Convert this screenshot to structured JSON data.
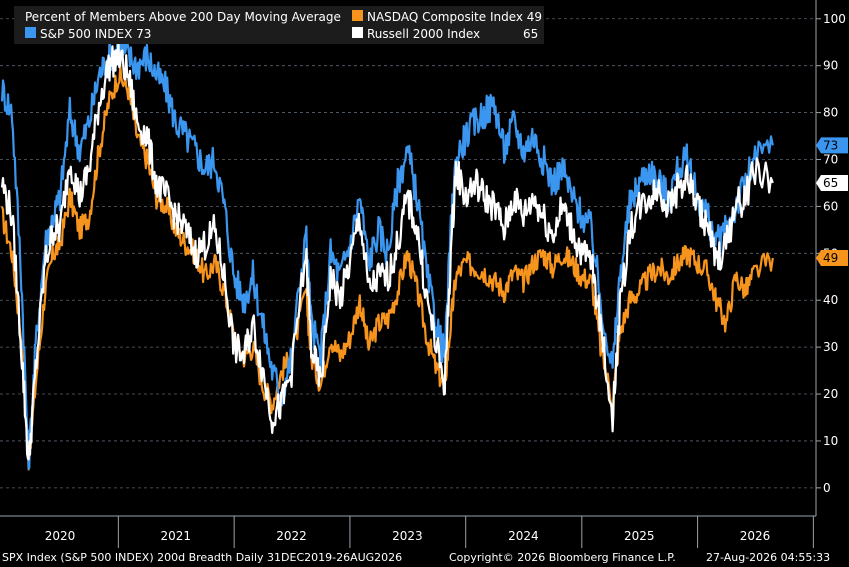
{
  "chart_data": {
    "type": "line",
    "title": "Percent of Members Above 200 Day Moving Average",
    "x_labels": [
      "2020",
      "2021",
      "2022",
      "2023",
      "2024",
      "2025",
      "2026"
    ],
    "ylim": [
      -6,
      104
    ],
    "y_ticks": [
      0,
      10,
      20,
      30,
      40,
      50,
      60,
      70,
      80,
      90,
      100
    ],
    "grid": true,
    "legend_position": "top-left",
    "series": [
      {
        "name": "NASDAQ Composite Index",
        "legend_label": "NASDAQ Composite Index 49",
        "color": "#f7941d",
        "last_value": "49",
        "x": [
          "2019-12-31",
          "2020-02-01",
          "2020-03-01",
          "2020-03-24",
          "2020-04-15",
          "2020-05-15",
          "2020-06-10",
          "2020-07-01",
          "2020-08-01",
          "2020-09-01",
          "2020-10-01",
          "2020-11-01",
          "2020-12-01",
          "2021-01-01",
          "2021-02-01",
          "2021-03-01",
          "2021-04-01",
          "2021-05-01",
          "2021-06-01",
          "2021-07-01",
          "2021-08-01",
          "2021-09-01",
          "2021-10-01",
          "2021-11-01",
          "2021-12-01",
          "2022-01-01",
          "2022-02-01",
          "2022-03-01",
          "2022-04-01",
          "2022-05-01",
          "2022-06-01",
          "2022-07-01",
          "2022-08-15",
          "2022-09-01",
          "2022-10-01",
          "2022-11-01",
          "2022-12-01",
          "2023-01-01",
          "2023-02-01",
          "2023-03-01",
          "2023-04-01",
          "2023-05-01",
          "2023-06-01",
          "2023-07-01",
          "2023-08-01",
          "2023-09-01",
          "2023-10-01",
          "2023-10-27",
          "2023-11-15",
          "2023-12-01",
          "2024-01-01",
          "2024-02-01",
          "2024-03-01",
          "2024-04-01",
          "2024-05-01",
          "2024-06-01",
          "2024-07-01",
          "2024-08-01",
          "2024-09-01",
          "2024-10-01",
          "2024-11-01",
          "2024-12-01",
          "2025-01-01",
          "2025-02-01",
          "2025-03-01",
          "2025-04-08",
          "2025-05-01",
          "2025-06-01",
          "2025-07-01",
          "2025-08-01",
          "2025-09-01",
          "2025-10-01",
          "2025-11-01",
          "2025-12-01",
          "2026-01-01",
          "2026-02-01",
          "2026-03-01",
          "2026-04-01",
          "2026-05-01",
          "2026-06-01",
          "2026-07-01",
          "2026-08-26"
        ],
        "values": [
          58,
          50,
          32,
          6,
          22,
          42,
          50,
          52,
          62,
          55,
          58,
          72,
          82,
          88,
          85,
          75,
          70,
          62,
          60,
          55,
          52,
          50,
          45,
          48,
          42,
          32,
          28,
          30,
          22,
          18,
          25,
          28,
          42,
          28,
          22,
          32,
          28,
          32,
          40,
          30,
          35,
          36,
          42,
          50,
          42,
          32,
          25,
          22,
          35,
          45,
          48,
          47,
          46,
          44,
          42,
          46,
          44,
          48,
          50,
          47,
          50,
          48,
          45,
          44,
          30,
          18,
          33,
          40,
          42,
          45,
          47,
          45,
          48,
          50,
          48,
          46,
          40,
          35,
          45,
          42,
          46,
          49
        ]
      },
      {
        "name": "S&P 500 INDEX",
        "legend_label": "S&P 500 INDEX 73",
        "color": "#3b96f0",
        "last_value": "73",
        "x": [
          "2019-12-31",
          "2020-02-01",
          "2020-03-01",
          "2020-03-24",
          "2020-04-15",
          "2020-05-15",
          "2020-06-10",
          "2020-07-01",
          "2020-08-01",
          "2020-09-01",
          "2020-10-01",
          "2020-11-01",
          "2020-12-01",
          "2021-01-01",
          "2021-02-01",
          "2021-03-01",
          "2021-04-01",
          "2021-05-01",
          "2021-06-01",
          "2021-07-01",
          "2021-08-01",
          "2021-09-01",
          "2021-10-01",
          "2021-11-01",
          "2021-12-01",
          "2022-01-01",
          "2022-02-01",
          "2022-03-01",
          "2022-04-01",
          "2022-05-01",
          "2022-06-01",
          "2022-07-01",
          "2022-08-15",
          "2022-09-01",
          "2022-10-01",
          "2022-11-01",
          "2022-12-01",
          "2023-01-01",
          "2023-02-01",
          "2023-03-01",
          "2023-04-01",
          "2023-05-01",
          "2023-06-01",
          "2023-07-01",
          "2023-08-01",
          "2023-09-01",
          "2023-10-01",
          "2023-10-27",
          "2023-11-15",
          "2023-12-01",
          "2024-01-01",
          "2024-02-01",
          "2024-03-01",
          "2024-04-01",
          "2024-05-01",
          "2024-06-01",
          "2024-07-01",
          "2024-08-01",
          "2024-09-01",
          "2024-10-01",
          "2024-11-01",
          "2024-12-01",
          "2025-01-01",
          "2025-02-01",
          "2025-03-01",
          "2025-04-08",
          "2025-05-01",
          "2025-06-01",
          "2025-07-01",
          "2025-08-01",
          "2025-09-01",
          "2025-10-01",
          "2025-11-01",
          "2025-12-01",
          "2026-01-01",
          "2026-02-01",
          "2026-03-01",
          "2026-04-01",
          "2026-05-01",
          "2026-06-01",
          "2026-07-01",
          "2026-08-26"
        ],
        "values": [
          85,
          80,
          45,
          5,
          30,
          52,
          58,
          62,
          80,
          72,
          78,
          88,
          92,
          94,
          92,
          90,
          92,
          88,
          85,
          78,
          75,
          72,
          68,
          70,
          60,
          45,
          40,
          45,
          35,
          25,
          20,
          28,
          55,
          35,
          28,
          50,
          45,
          52,
          62,
          48,
          55,
          50,
          65,
          72,
          62,
          45,
          35,
          28,
          55,
          70,
          75,
          78,
          80,
          82,
          72,
          78,
          72,
          75,
          70,
          65,
          68,
          62,
          58,
          55,
          40,
          25,
          45,
          60,
          65,
          68,
          65,
          62,
          68,
          70,
          62,
          58,
          52,
          55,
          60,
          65,
          70,
          73
        ]
      },
      {
        "name": "Russell 2000 Index",
        "legend_label": "Russell 2000 Index",
        "color": "#ffffff",
        "last_value": "65",
        "x": [
          "2019-12-31",
          "2020-02-01",
          "2020-03-01",
          "2020-03-24",
          "2020-04-15",
          "2020-05-15",
          "2020-06-10",
          "2020-07-01",
          "2020-08-01",
          "2020-09-01",
          "2020-10-01",
          "2020-11-01",
          "2020-12-01",
          "2021-01-01",
          "2021-02-01",
          "2021-03-01",
          "2021-04-01",
          "2021-05-01",
          "2021-06-01",
          "2021-07-01",
          "2021-08-01",
          "2021-09-01",
          "2021-10-01",
          "2021-11-01",
          "2021-12-01",
          "2022-01-01",
          "2022-02-01",
          "2022-03-01",
          "2022-04-01",
          "2022-05-01",
          "2022-06-01",
          "2022-07-01",
          "2022-08-15",
          "2022-09-01",
          "2022-10-01",
          "2022-11-01",
          "2022-12-01",
          "2023-01-01",
          "2023-02-01",
          "2023-03-01",
          "2023-04-01",
          "2023-05-01",
          "2023-06-01",
          "2023-07-01",
          "2023-08-01",
          "2023-09-01",
          "2023-10-01",
          "2023-10-27",
          "2023-11-15",
          "2023-12-01",
          "2024-01-01",
          "2024-02-01",
          "2024-03-01",
          "2024-04-01",
          "2024-05-01",
          "2024-06-01",
          "2024-07-01",
          "2024-08-01",
          "2024-09-01",
          "2024-10-01",
          "2024-11-01",
          "2024-12-01",
          "2025-01-01",
          "2025-02-01",
          "2025-03-01",
          "2025-04-08",
          "2025-05-01",
          "2025-06-01",
          "2025-07-01",
          "2025-08-01",
          "2025-09-01",
          "2025-10-01",
          "2025-11-01",
          "2025-12-01",
          "2026-01-01",
          "2026-02-01",
          "2026-03-01",
          "2026-04-01",
          "2026-05-01",
          "2026-06-01",
          "2026-07-01",
          "2026-08-26"
        ],
        "values": [
          65,
          58,
          30,
          5,
          25,
          48,
          55,
          55,
          70,
          62,
          68,
          82,
          90,
          92,
          88,
          78,
          75,
          65,
          62,
          58,
          55,
          50,
          52,
          55,
          45,
          30,
          28,
          35,
          25,
          15,
          18,
          25,
          50,
          30,
          22,
          45,
          40,
          48,
          58,
          42,
          45,
          45,
          52,
          62,
          55,
          40,
          30,
          22,
          50,
          68,
          62,
          65,
          62,
          60,
          55,
          62,
          58,
          62,
          58,
          54,
          60,
          55,
          50,
          48,
          35,
          15,
          38,
          55,
          60,
          62,
          64,
          60,
          64,
          66,
          60,
          56,
          48,
          52,
          60,
          62,
          68,
          65
        ]
      }
    ]
  },
  "footer": {
    "left": "SPX Index (S&P 500 INDEX) 200d Breadth Daily 31DEC2019-26AUG2026",
    "center": "Copyright© 2026 Bloomberg Finance L.P.",
    "right": "27-Aug-2026 04:55:33"
  }
}
